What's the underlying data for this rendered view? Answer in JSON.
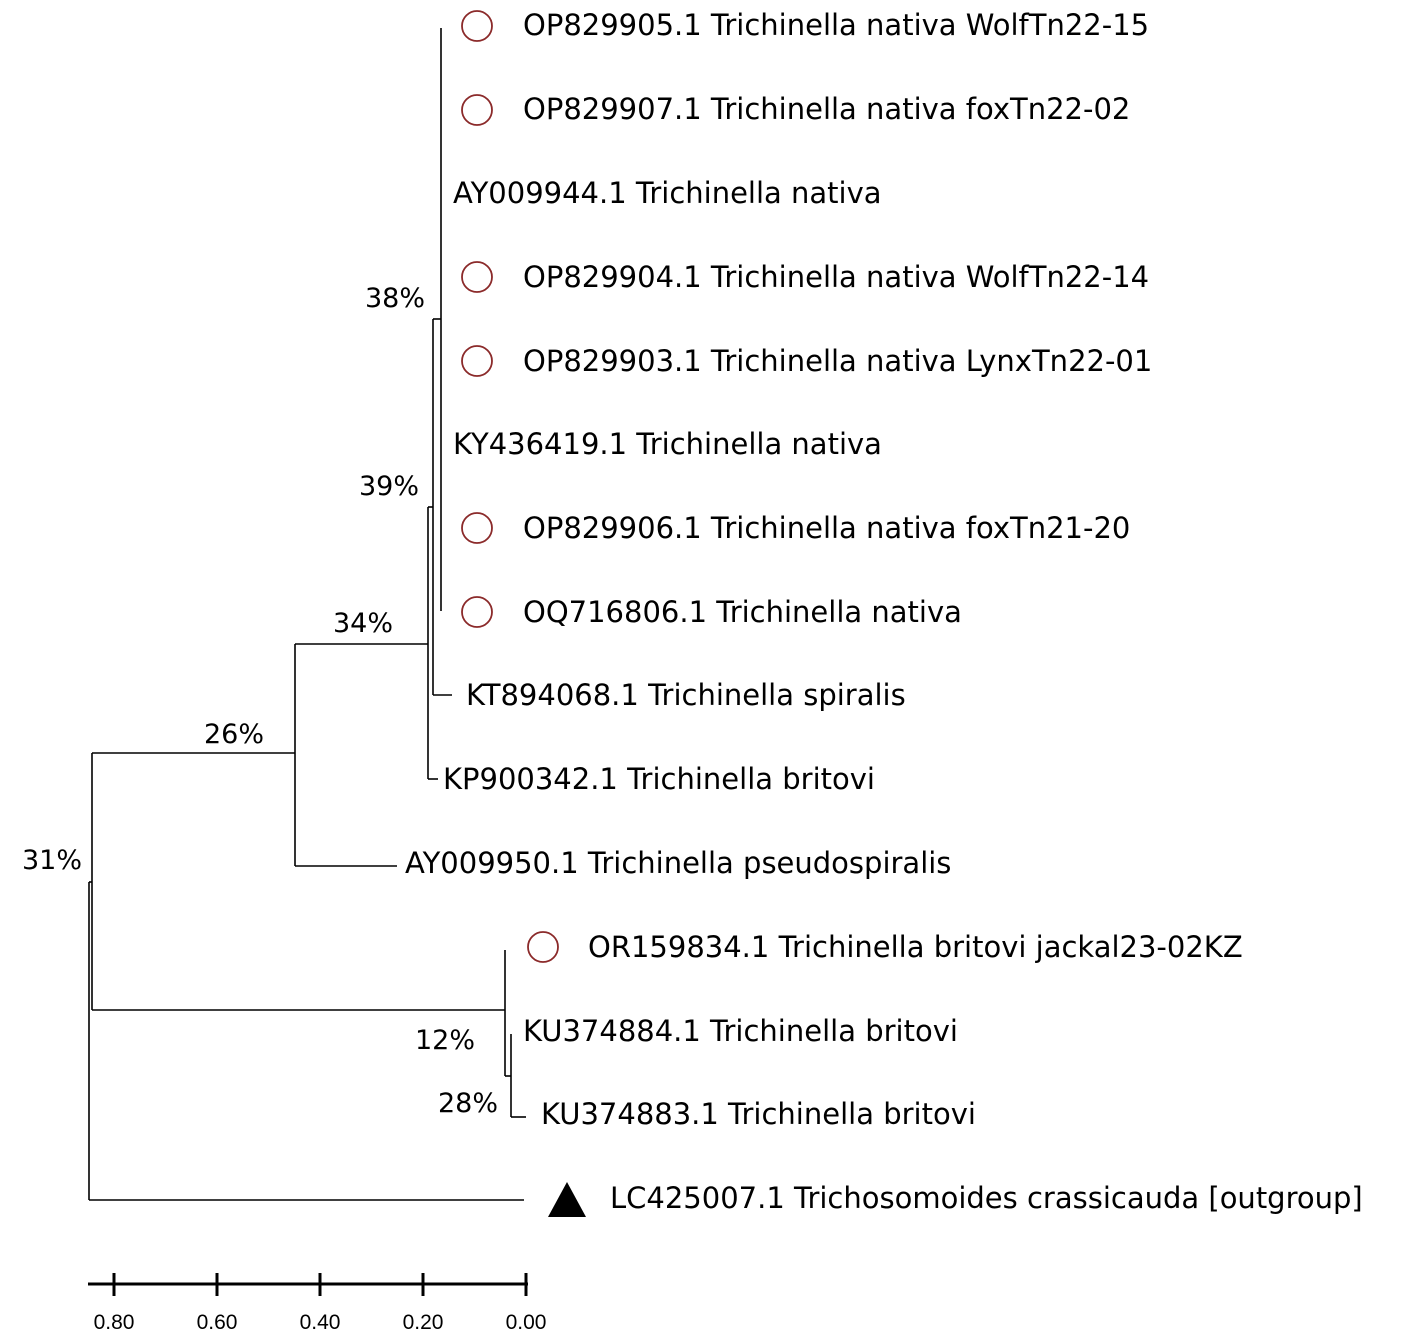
{
  "tree": {
    "taxa": [
      {
        "label": "OP829905.1 Trichinella nativa WolfTn22-15",
        "marker": "circle"
      },
      {
        "label": "OP829907.1 Trichinella nativa foxTn22-02",
        "marker": "circle"
      },
      {
        "label": "AY009944.1 Trichinella nativa",
        "marker": "none"
      },
      {
        "label": "OP829904.1 Trichinella nativa WolfTn22-14",
        "marker": "circle"
      },
      {
        "label": "OP829903.1 Trichinella nativa LynxTn22-01",
        "marker": "circle"
      },
      {
        "label": "KY436419.1 Trichinella nativa",
        "marker": "none"
      },
      {
        "label": "OP829906.1 Trichinella nativa foxTn21-20",
        "marker": "circle"
      },
      {
        "label": "OQ716806.1 Trichinella nativa",
        "marker": "circle"
      },
      {
        "label": "KT894068.1 Trichinella spiralis",
        "marker": "none"
      },
      {
        "label": "KP900342.1 Trichinella britovi",
        "marker": "none"
      },
      {
        "label": "AY009950.1 Trichinella pseudospiralis",
        "marker": "none"
      },
      {
        "label": "OR159834.1 Trichinella britovi jackal23-02KZ",
        "marker": "circle"
      },
      {
        "label": "KU374884.1 Trichinella britovi",
        "marker": "none"
      },
      {
        "label": "KU374883.1 Trichinella britovi",
        "marker": "none"
      },
      {
        "label": "LC425007.1 Trichosomoides crassicauda [outgroup]",
        "marker": "triangle"
      }
    ],
    "support_values": [
      "38%",
      "39%",
      "34%",
      "26%",
      "31%",
      "12%",
      "28%"
    ],
    "scale_ticks": [
      "0.80",
      "0.60",
      "0.40",
      "0.20",
      "0.00"
    ],
    "colors": {
      "circle_marker": "#8b2a2a",
      "triangle_marker": "#000000",
      "branch": "#000000"
    }
  }
}
